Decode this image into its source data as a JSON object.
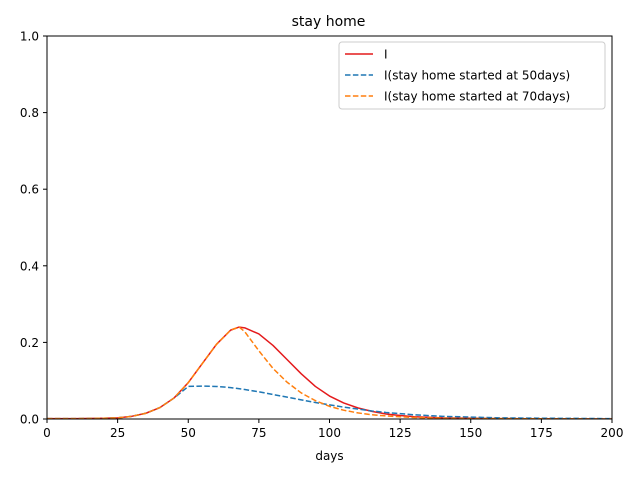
{
  "chart_data": {
    "type": "line",
    "title": "stay home",
    "xlabel": "days",
    "ylabel": "",
    "xlim": [
      0,
      200
    ],
    "ylim": [
      0,
      1.0
    ],
    "xticks": [
      0,
      25,
      50,
      75,
      100,
      125,
      150,
      175,
      200
    ],
    "xtick_labels": [
      "0",
      "25",
      "50",
      "75",
      "100",
      "125",
      "150",
      "175",
      "200"
    ],
    "yticks": [
      0,
      0.2,
      0.4,
      0.6,
      0.8,
      1.0
    ],
    "ytick_labels": [
      "0.0",
      "0.2",
      "0.4",
      "0.6",
      "0.8",
      "1.0"
    ],
    "grid": false,
    "legend_position": "top-right",
    "series": [
      {
        "name": "I",
        "color": "#e41a1c",
        "dash": "solid",
        "x": [
          0,
          10,
          20,
          25,
          30,
          35,
          40,
          45,
          50,
          55,
          60,
          65,
          68,
          70,
          75,
          80,
          85,
          90,
          95,
          100,
          105,
          110,
          115,
          120,
          125,
          130,
          140,
          150,
          160,
          175,
          200
        ],
        "y": [
          0.001,
          0.001,
          0.002,
          0.003,
          0.007,
          0.015,
          0.03,
          0.055,
          0.095,
          0.145,
          0.195,
          0.232,
          0.24,
          0.238,
          0.222,
          0.192,
          0.155,
          0.118,
          0.085,
          0.06,
          0.042,
          0.029,
          0.02,
          0.013,
          0.009,
          0.006,
          0.003,
          0.002,
          0.001,
          0.0005,
          0.0
        ]
      },
      {
        "name": "I(stay home started at 50days)",
        "color": "#1f77b4",
        "dash": "dashed",
        "x": [
          0,
          10,
          20,
          25,
          30,
          35,
          40,
          45,
          50,
          55,
          60,
          65,
          70,
          75,
          80,
          85,
          90,
          95,
          100,
          105,
          110,
          115,
          120,
          125,
          130,
          140,
          150,
          160,
          175,
          200
        ],
        "y": [
          0.001,
          0.001,
          0.002,
          0.003,
          0.007,
          0.015,
          0.03,
          0.055,
          0.085,
          0.086,
          0.085,
          0.082,
          0.077,
          0.071,
          0.064,
          0.057,
          0.05,
          0.043,
          0.037,
          0.031,
          0.026,
          0.021,
          0.017,
          0.014,
          0.011,
          0.007,
          0.005,
          0.003,
          0.002,
          0.001
        ]
      },
      {
        "name": "I(stay home started at 70days)",
        "color": "#ff7f0e",
        "dash": "dashed",
        "x": [
          0,
          10,
          20,
          25,
          30,
          35,
          40,
          45,
          50,
          55,
          60,
          65,
          68,
          70,
          75,
          80,
          85,
          90,
          95,
          100,
          105,
          110,
          115,
          120,
          125,
          130,
          140,
          150,
          160,
          175,
          200
        ],
        "y": [
          0.001,
          0.001,
          0.002,
          0.003,
          0.007,
          0.015,
          0.03,
          0.055,
          0.095,
          0.145,
          0.195,
          0.232,
          0.24,
          0.228,
          0.178,
          0.132,
          0.096,
          0.068,
          0.048,
          0.033,
          0.023,
          0.016,
          0.011,
          0.008,
          0.006,
          0.004,
          0.002,
          0.001,
          0.001,
          0.0005,
          0.0
        ]
      }
    ]
  }
}
